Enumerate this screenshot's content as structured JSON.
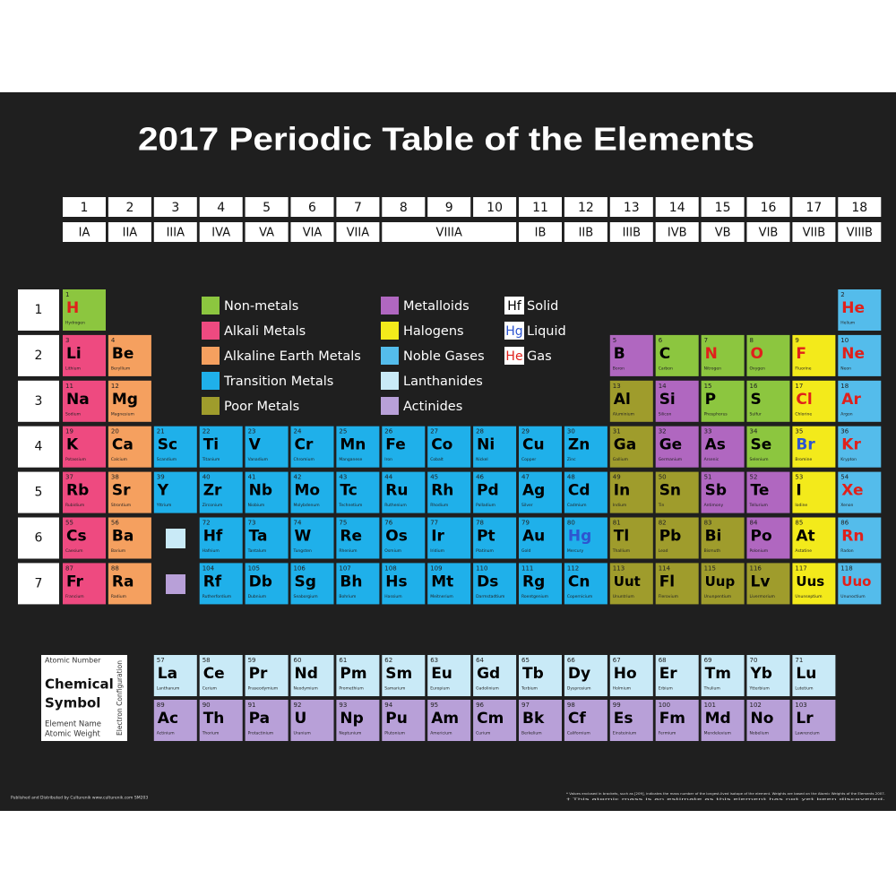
{
  "title": "2017 Periodic Table of the Elements",
  "groups": [
    1,
    2,
    3,
    4,
    5,
    6,
    7,
    8,
    9,
    10,
    11,
    12,
    13,
    14,
    15,
    16,
    17,
    18
  ],
  "group_labels": [
    {
      "label": "IA",
      "span": 1
    },
    {
      "label": "IIA",
      "span": 1
    },
    {
      "label": "IIIA",
      "span": 1
    },
    {
      "label": "IVA",
      "span": 1
    },
    {
      "label": "VA",
      "span": 1
    },
    {
      "label": "VIA",
      "span": 1
    },
    {
      "label": "VIIA",
      "span": 1
    },
    {
      "label": "VIIIA",
      "span": 3
    },
    {
      "label": "IB",
      "span": 1
    },
    {
      "label": "IIB",
      "span": 1
    },
    {
      "label": "IIIB",
      "span": 1
    },
    {
      "label": "IVB",
      "span": 1
    },
    {
      "label": "VB",
      "span": 1
    },
    {
      "label": "VIB",
      "span": 1
    },
    {
      "label": "VIIB",
      "span": 1
    },
    {
      "label": "VIIIB",
      "span": 1
    }
  ],
  "periods": [
    1,
    2,
    3,
    4,
    5,
    6,
    7
  ],
  "legend": [
    {
      "label": "Non-metals",
      "color": "#8cc63f"
    },
    {
      "label": "Alkali Metals",
      "color": "#ee4a80"
    },
    {
      "label": "Alkaline Earth Metals",
      "color": "#f5a05f"
    },
    {
      "label": "Transition Metals",
      "color": "#1fb0ea"
    },
    {
      "label": "Poor Metals",
      "color": "#9f9c2c"
    },
    {
      "label": "Metalloids",
      "color": "#b067c0"
    },
    {
      "label": "Halogens",
      "color": "#f3ea1b"
    },
    {
      "label": "Noble Gases",
      "color": "#54bceb"
    },
    {
      "label": "Lanthanides",
      "color": "#c9eaf7"
    },
    {
      "label": "Actinides",
      "color": "#b8a0d8"
    }
  ],
  "states": [
    {
      "symbol": "Hf",
      "label": "Solid",
      "color": "#000000"
    },
    {
      "symbol": "Hg",
      "label": "Liquid",
      "color": "#2e55d0"
    },
    {
      "symbol": "He",
      "label": "Gas",
      "color": "#e0201b"
    }
  ],
  "key": {
    "atomic_number": "Atomic Number",
    "symbol_lines": [
      "Chemical",
      "Symbol"
    ],
    "element_name": "Element Name",
    "atomic_weight": "Atomic Weight",
    "configuration": "Electron Configuration"
  },
  "elements": [
    [
      1,
      "H",
      "Hydrogen",
      0,
      2
    ],
    [
      2,
      "He",
      "Helium",
      7,
      2
    ],
    [
      3,
      "Li",
      "Lithium",
      1,
      0
    ],
    [
      4,
      "Be",
      "Beryllium",
      2,
      0
    ],
    [
      5,
      "B",
      "Boron",
      5,
      0
    ],
    [
      6,
      "C",
      "Carbon",
      0,
      0
    ],
    [
      7,
      "N",
      "Nitrogen",
      0,
      2
    ],
    [
      8,
      "O",
      "Oxygen",
      0,
      2
    ],
    [
      9,
      "F",
      "Fluorine",
      6,
      2
    ],
    [
      10,
      "Ne",
      "Neon",
      7,
      2
    ],
    [
      11,
      "Na",
      "Sodium",
      1,
      0
    ],
    [
      12,
      "Mg",
      "Magnesium",
      2,
      0
    ],
    [
      13,
      "Al",
      "Aluminium",
      4,
      0
    ],
    [
      14,
      "Si",
      "Silicon",
      5,
      0
    ],
    [
      15,
      "P",
      "Phosphorus",
      0,
      0
    ],
    [
      16,
      "S",
      "Sulfur",
      0,
      0
    ],
    [
      17,
      "Cl",
      "Chlorine",
      6,
      2
    ],
    [
      18,
      "Ar",
      "Argon",
      7,
      2
    ],
    [
      19,
      "K",
      "Potassium",
      1,
      0
    ],
    [
      20,
      "Ca",
      "Calcium",
      2,
      0
    ],
    [
      21,
      "Sc",
      "Scandium",
      3,
      0
    ],
    [
      22,
      "Ti",
      "Titanium",
      3,
      0
    ],
    [
      23,
      "V",
      "Vanadium",
      3,
      0
    ],
    [
      24,
      "Cr",
      "Chromium",
      3,
      0
    ],
    [
      25,
      "Mn",
      "Manganese",
      3,
      0
    ],
    [
      26,
      "Fe",
      "Iron",
      3,
      0
    ],
    [
      27,
      "Co",
      "Cobalt",
      3,
      0
    ],
    [
      28,
      "Ni",
      "Nickel",
      3,
      0
    ],
    [
      29,
      "Cu",
      "Copper",
      3,
      0
    ],
    [
      30,
      "Zn",
      "Zinc",
      3,
      0
    ],
    [
      31,
      "Ga",
      "Gallium",
      4,
      0
    ],
    [
      32,
      "Ge",
      "Germanium",
      5,
      0
    ],
    [
      33,
      "As",
      "Arsenic",
      5,
      0
    ],
    [
      34,
      "Se",
      "Selenium",
      0,
      0
    ],
    [
      35,
      "Br",
      "Bromine",
      6,
      1
    ],
    [
      36,
      "Kr",
      "Krypton",
      7,
      2
    ],
    [
      37,
      "Rb",
      "Rubidium",
      1,
      0
    ],
    [
      38,
      "Sr",
      "Strontium",
      2,
      0
    ],
    [
      39,
      "Y",
      "Yttrium",
      3,
      0
    ],
    [
      40,
      "Zr",
      "Zirconium",
      3,
      0
    ],
    [
      41,
      "Nb",
      "Niobium",
      3,
      0
    ],
    [
      42,
      "Mo",
      "Molybdenum",
      3,
      0
    ],
    [
      43,
      "Tc",
      "Technetium",
      3,
      0
    ],
    [
      44,
      "Ru",
      "Ruthenium",
      3,
      0
    ],
    [
      45,
      "Rh",
      "Rhodium",
      3,
      0
    ],
    [
      46,
      "Pd",
      "Palladium",
      3,
      0
    ],
    [
      47,
      "Ag",
      "Silver",
      3,
      0
    ],
    [
      48,
      "Cd",
      "Cadmium",
      3,
      0
    ],
    [
      49,
      "In",
      "Indium",
      4,
      0
    ],
    [
      50,
      "Sn",
      "Tin",
      4,
      0
    ],
    [
      51,
      "Sb",
      "Antimony",
      5,
      0
    ],
    [
      52,
      "Te",
      "Tellurium",
      5,
      0
    ],
    [
      53,
      "I",
      "Iodine",
      6,
      0
    ],
    [
      54,
      "Xe",
      "Xenon",
      7,
      2
    ],
    [
      55,
      "Cs",
      "Caesium",
      1,
      0
    ],
    [
      56,
      "Ba",
      "Barium",
      2,
      0
    ],
    [
      57,
      "La",
      "Lanthanum",
      8,
      0
    ],
    [
      58,
      "Ce",
      "Cerium",
      8,
      0
    ],
    [
      59,
      "Pr",
      "Praseodymium",
      8,
      0
    ],
    [
      60,
      "Nd",
      "Neodymium",
      8,
      0
    ],
    [
      61,
      "Pm",
      "Promethium",
      8,
      0
    ],
    [
      62,
      "Sm",
      "Samarium",
      8,
      0
    ],
    [
      63,
      "Eu",
      "Europium",
      8,
      0
    ],
    [
      64,
      "Gd",
      "Gadolinium",
      8,
      0
    ],
    [
      65,
      "Tb",
      "Terbium",
      8,
      0
    ],
    [
      66,
      "Dy",
      "Dysprosium",
      8,
      0
    ],
    [
      67,
      "Ho",
      "Holmium",
      8,
      0
    ],
    [
      68,
      "Er",
      "Erbium",
      8,
      0
    ],
    [
      69,
      "Tm",
      "Thulium",
      8,
      0
    ],
    [
      70,
      "Yb",
      "Ytterbium",
      8,
      0
    ],
    [
      71,
      "Lu",
      "Lutetium",
      8,
      0
    ],
    [
      72,
      "Hf",
      "Hafnium",
      3,
      0
    ],
    [
      73,
      "Ta",
      "Tantalum",
      3,
      0
    ],
    [
      74,
      "W",
      "Tungsten",
      3,
      0
    ],
    [
      75,
      "Re",
      "Rhenium",
      3,
      0
    ],
    [
      76,
      "Os",
      "Osmium",
      3,
      0
    ],
    [
      77,
      "Ir",
      "Iridium",
      3,
      0
    ],
    [
      78,
      "Pt",
      "Platinum",
      3,
      0
    ],
    [
      79,
      "Au",
      "Gold",
      3,
      0
    ],
    [
      80,
      "Hg",
      "Mercury",
      3,
      1
    ],
    [
      81,
      "Tl",
      "Thallium",
      4,
      0
    ],
    [
      82,
      "Pb",
      "Lead",
      4,
      0
    ],
    [
      83,
      "Bi",
      "Bismuth",
      4,
      0
    ],
    [
      84,
      "Po",
      "Polonium",
      5,
      0
    ],
    [
      85,
      "At",
      "Astatine",
      6,
      0
    ],
    [
      86,
      "Rn",
      "Radon",
      7,
      2
    ],
    [
      87,
      "Fr",
      "Francium",
      1,
      0
    ],
    [
      88,
      "Ra",
      "Radium",
      2,
      0
    ],
    [
      89,
      "Ac",
      "Actinium",
      9,
      0
    ],
    [
      90,
      "Th",
      "Thorium",
      9,
      0
    ],
    [
      91,
      "Pa",
      "Protactinium",
      9,
      0
    ],
    [
      92,
      "U",
      "Uranium",
      9,
      0
    ],
    [
      93,
      "Np",
      "Neptunium",
      9,
      0
    ],
    [
      94,
      "Pu",
      "Plutonium",
      9,
      0
    ],
    [
      95,
      "Am",
      "Americium",
      9,
      0
    ],
    [
      96,
      "Cm",
      "Curium",
      9,
      0
    ],
    [
      97,
      "Bk",
      "Berkelium",
      9,
      0
    ],
    [
      98,
      "Cf",
      "Californium",
      9,
      0
    ],
    [
      99,
      "Es",
      "Einsteinium",
      9,
      0
    ],
    [
      100,
      "Fm",
      "Fermium",
      9,
      0
    ],
    [
      101,
      "Md",
      "Mendelevium",
      9,
      0
    ],
    [
      102,
      "No",
      "Nobelium",
      9,
      0
    ],
    [
      103,
      "Lr",
      "Lawrencium",
      9,
      0
    ],
    [
      104,
      "Rf",
      "Rutherfordium",
      3,
      0
    ],
    [
      105,
      "Db",
      "Dubnium",
      3,
      0
    ],
    [
      106,
      "Sg",
      "Seaborgium",
      3,
      0
    ],
    [
      107,
      "Bh",
      "Bohrium",
      3,
      0
    ],
    [
      108,
      "Hs",
      "Hassium",
      3,
      0
    ],
    [
      109,
      "Mt",
      "Meitnerium",
      3,
      0
    ],
    [
      110,
      "Ds",
      "Darmstadtium",
      3,
      0
    ],
    [
      111,
      "Rg",
      "Roentgenium",
      3,
      0
    ],
    [
      112,
      "Cn",
      "Copernicium",
      3,
      0
    ],
    [
      113,
      "Uut",
      "Ununtrium",
      4,
      0
    ],
    [
      114,
      "Fl",
      "Flerovium",
      4,
      0
    ],
    [
      115,
      "Uup",
      "Ununpentium",
      4,
      0
    ],
    [
      116,
      "Lv",
      "Livermorium",
      4,
      0
    ],
    [
      117,
      "Uus",
      "Ununseptium",
      6,
      0
    ],
    [
      118,
      "Uuo",
      "Ununoctium",
      7,
      2
    ]
  ],
  "footer_left": "Published and Distributed by Culturenik www.culturenik.com SM203",
  "footnotes": [
    "* Values enclosed in brackets, such as [209], indicates the mass number of the longest-lived isotope of the element. Weights are based on the Atomic Weights of the Elements 2007.",
    "† This atomic mass is an estimate as this element has not yet been discovered."
  ]
}
